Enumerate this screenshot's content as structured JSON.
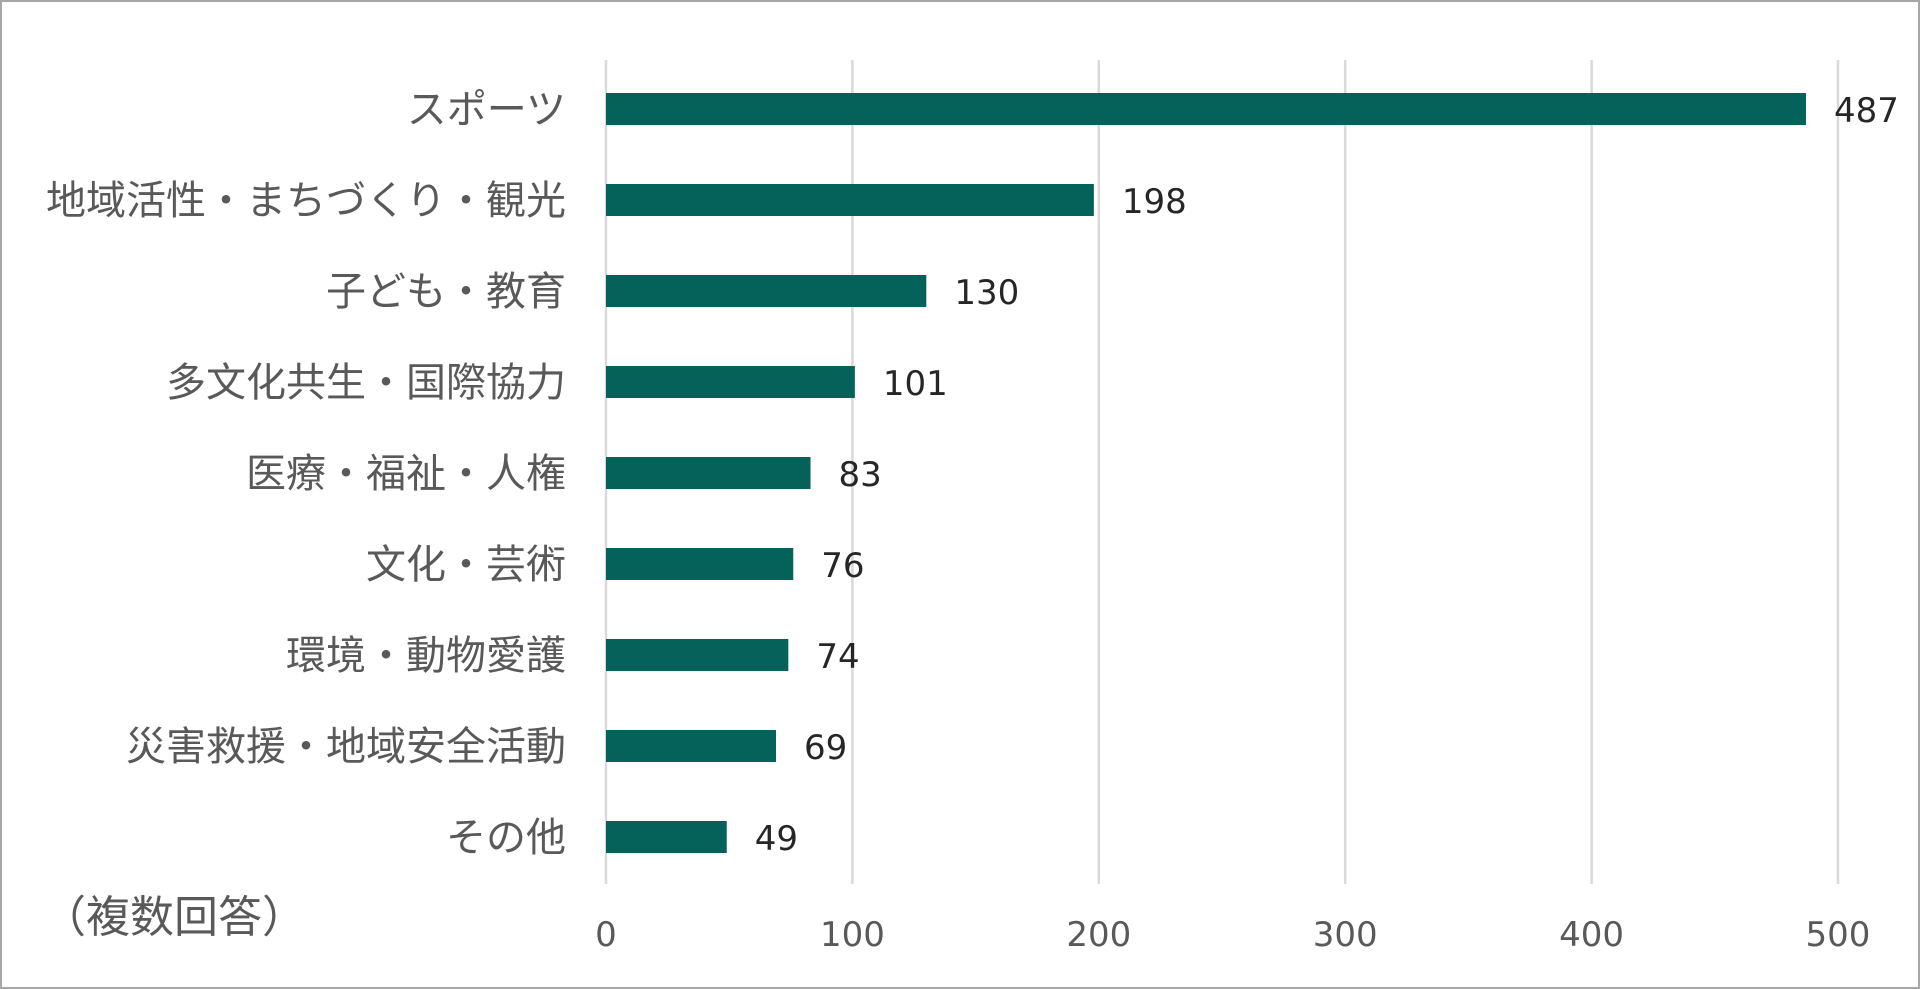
{
  "chart_data": {
    "type": "bar",
    "orientation": "horizontal",
    "categories": [
      "スポーツ",
      "地域活性・まちづくり・観光",
      "子ども・教育",
      "多文化共生・国際協力",
      "医療・福祉・人権",
      "文化・芸術",
      "環境・動物愛護",
      "災害救援・地域安全活動",
      "その他"
    ],
    "values": [
      487,
      198,
      130,
      101,
      83,
      76,
      74,
      69,
      49
    ],
    "xlim": [
      0,
      500
    ],
    "xticks": [
      0,
      100,
      200,
      300,
      400,
      500
    ],
    "grid": true,
    "bar_color": "#05625a",
    "note": "（複数回答）"
  }
}
